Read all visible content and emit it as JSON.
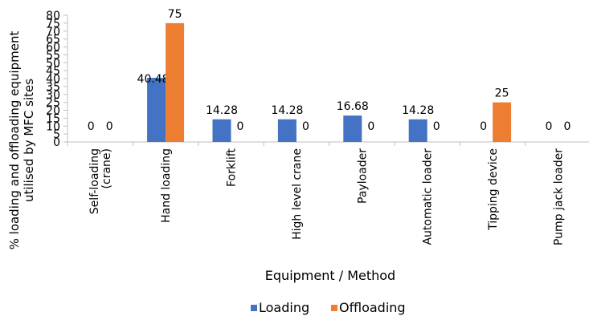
{
  "chart_data": {
    "type": "bar",
    "categories": [
      "Self-loading (crane)",
      "Hand loading",
      "Forklift",
      "High level crane",
      "Payloader",
      "Automatic loader",
      "Tipping device",
      "Pump jack loader"
    ],
    "category_lines": [
      [
        "Self-loading",
        "(crane)"
      ],
      [
        "Hand loading"
      ],
      [
        "Forklift"
      ],
      [
        "High level crane"
      ],
      [
        "Payloader"
      ],
      [
        "Automatic loader"
      ],
      [
        "Tipping device"
      ],
      [
        "Pump jack loader"
      ]
    ],
    "series": [
      {
        "name": "Loading",
        "color": "#4472C4",
        "values": [
          0,
          40.48,
          14.28,
          14.28,
          16.68,
          14.28,
          0,
          0
        ],
        "labels": [
          "0",
          "40.48",
          "14.28",
          "14.28",
          "16.68",
          "14.28",
          "0",
          "0"
        ]
      },
      {
        "name": "Offloading",
        "color": "#ED7D31",
        "values": [
          0,
          75,
          0,
          0,
          0,
          0,
          25,
          0
        ],
        "labels": [
          "0",
          "75",
          "0",
          "0",
          "0",
          "0",
          "25",
          "0"
        ]
      }
    ],
    "xlabel": "Equipment / Method",
    "ylabel_lines": [
      "% loading and offloading equipment",
      "utilised by MFC sites"
    ],
    "ylim": [
      0,
      80
    ],
    "yticks": [
      0,
      5,
      10,
      15,
      20,
      25,
      30,
      35,
      40,
      45,
      50,
      55,
      60,
      65,
      70,
      75,
      80
    ],
    "ytick_labels": [
      "0",
      "5",
      "10",
      "15",
      "20",
      "25",
      "30",
      "35",
      "40",
      "45",
      "50",
      "55",
      "60",
      "65",
      "70",
      "75",
      "80"
    ],
    "grid": false,
    "legend_position": "bottom"
  }
}
